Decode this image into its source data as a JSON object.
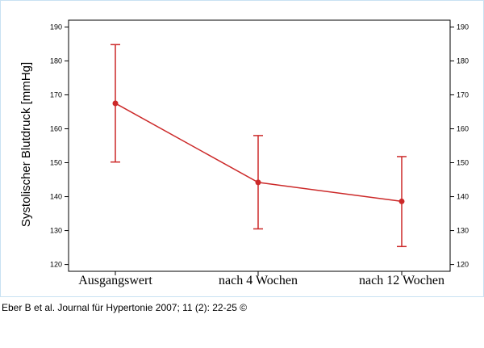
{
  "chart_data": {
    "type": "line",
    "categories": [
      "Ausgangswert",
      "nach 4 Wochen",
      "nach 12 Wochen"
    ],
    "series": [
      {
        "values": [
          167.5,
          144.2,
          138.6
        ],
        "error_low": [
          150.2,
          130.5,
          125.3
        ],
        "error_high": [
          184.8,
          158.0,
          151.8
        ],
        "color": "#cc2929"
      }
    ],
    "title": "",
    "xlabel": "",
    "ylabel": "Systolischer Blutdruck [mmHg]",
    "ylim": [
      118,
      192
    ],
    "yticks": [
      120,
      130,
      140,
      150,
      160,
      170,
      180,
      190
    ],
    "ytick_labels": [
      "120",
      "130",
      "140",
      "150",
      "160",
      "170",
      "180",
      "190"
    ],
    "right_axis": true,
    "grid": false,
    "legend": "none"
  },
  "colors": {
    "series": "#cc2929",
    "axis": "#000000",
    "frame_border": "#c9e2f3"
  },
  "source_credit": "Eber B et al. Journal für Hypertonie 2007; 11 (2): 22-25 ©"
}
